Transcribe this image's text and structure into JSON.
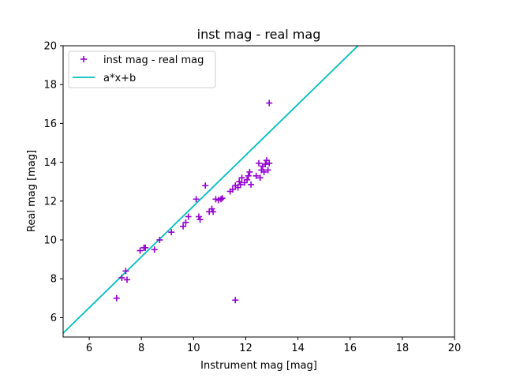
{
  "chart_data": {
    "type": "scatter",
    "title": "inst mag - real mag",
    "xlabel": "Instrument mag [mag]",
    "ylabel": "Real mag [mag]",
    "xlim": [
      5,
      20
    ],
    "ylim": [
      5,
      20
    ],
    "xticks": [
      "6",
      "8",
      "10",
      "12",
      "14",
      "16",
      "18",
      "20"
    ],
    "yticks": [
      "6",
      "8",
      "10",
      "12",
      "14",
      "16",
      "18",
      "20"
    ],
    "grid": false,
    "legend": {
      "position": "top-left",
      "entries": [
        {
          "label": "inst mag - real mag",
          "marker": "plus",
          "color": "#9400D3"
        },
        {
          "label": "a*x+b",
          "marker": "line",
          "color": "#00BFBF"
        }
      ]
    },
    "series": [
      {
        "name": "inst mag - real mag",
        "kind": "scatter",
        "marker": "plus",
        "color": "#9400D3",
        "points": [
          [
            7.05,
            7.0
          ],
          [
            7.25,
            8.05
          ],
          [
            7.4,
            8.4
          ],
          [
            7.45,
            7.95
          ],
          [
            7.95,
            9.45
          ],
          [
            8.1,
            9.6
          ],
          [
            8.15,
            9.6
          ],
          [
            8.5,
            9.5
          ],
          [
            8.7,
            10.0
          ],
          [
            9.15,
            10.4
          ],
          [
            9.6,
            10.7
          ],
          [
            9.7,
            10.9
          ],
          [
            9.8,
            11.2
          ],
          [
            10.1,
            12.1
          ],
          [
            10.2,
            11.2
          ],
          [
            10.25,
            11.05
          ],
          [
            10.45,
            12.8
          ],
          [
            10.6,
            11.45
          ],
          [
            10.7,
            11.6
          ],
          [
            10.75,
            11.45
          ],
          [
            10.85,
            12.1
          ],
          [
            10.95,
            12.05
          ],
          [
            11.05,
            12.1
          ],
          [
            11.1,
            12.15
          ],
          [
            11.4,
            12.5
          ],
          [
            11.5,
            12.6
          ],
          [
            11.6,
            6.9
          ],
          [
            11.6,
            12.8
          ],
          [
            11.7,
            12.7
          ],
          [
            11.75,
            13.0
          ],
          [
            11.8,
            12.85
          ],
          [
            11.85,
            13.2
          ],
          [
            11.95,
            12.95
          ],
          [
            12.05,
            13.1
          ],
          [
            12.1,
            13.3
          ],
          [
            12.15,
            13.5
          ],
          [
            12.2,
            12.85
          ],
          [
            12.4,
            13.3
          ],
          [
            12.5,
            13.95
          ],
          [
            12.55,
            13.2
          ],
          [
            12.6,
            13.6
          ],
          [
            12.65,
            13.8
          ],
          [
            12.7,
            13.5
          ],
          [
            12.75,
            13.9
          ],
          [
            12.8,
            14.1
          ],
          [
            12.85,
            13.6
          ],
          [
            12.9,
            13.95
          ],
          [
            12.9,
            17.05
          ]
        ]
      },
      {
        "name": "a*x+b",
        "kind": "line",
        "color": "#00BFBF",
        "x": [
          5,
          16.3
        ],
        "y": [
          5.2,
          20
        ]
      }
    ]
  }
}
